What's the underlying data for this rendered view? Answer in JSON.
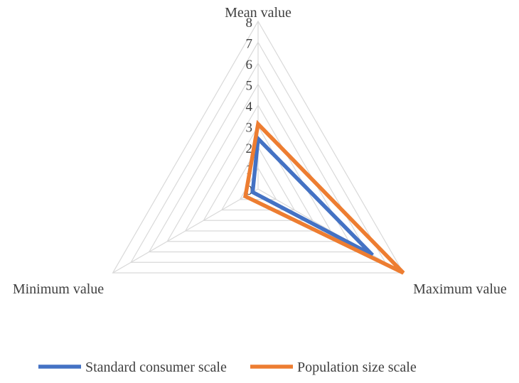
{
  "chart_data": {
    "type": "radar",
    "title": "",
    "axes": [
      "Mean value",
      "Maximum value",
      "Minimum value"
    ],
    "scale": {
      "min": 0,
      "max": 8,
      "step": 1
    },
    "tick_labels": [
      "0",
      "1",
      "2",
      "3",
      "4",
      "5",
      "6",
      "7",
      "8"
    ],
    "series": [
      {
        "name": "Standard consumer scale",
        "values": [
          2.4,
          6.3,
          0.3
        ],
        "color": "#4472C4"
      },
      {
        "name": "Population size scale",
        "values": [
          3.1,
          8.0,
          0.7
        ],
        "color": "#ED7D31"
      }
    ],
    "grid": true,
    "legend_position": "bottom"
  }
}
